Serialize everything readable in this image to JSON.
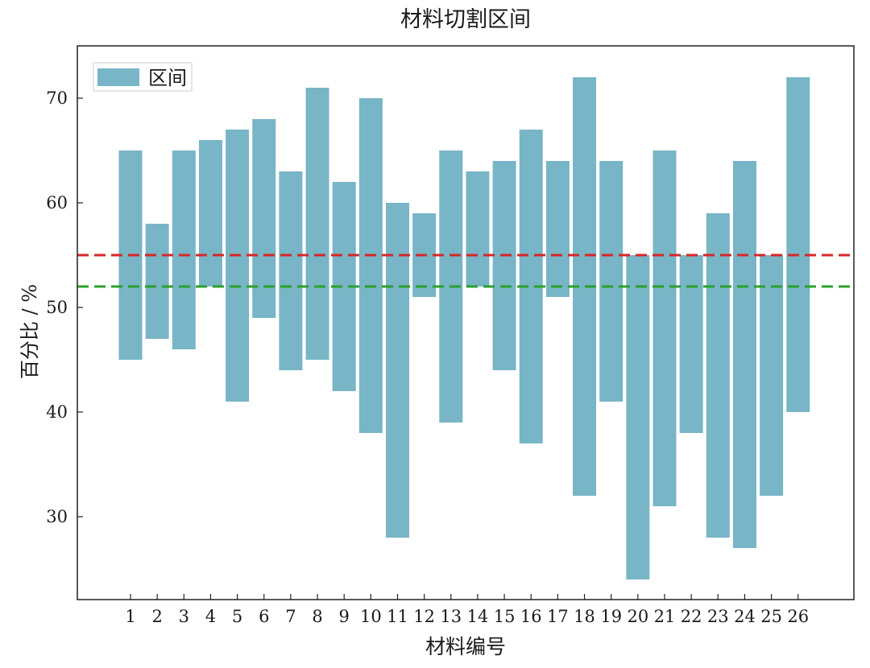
{
  "chart_data": {
    "type": "bar",
    "title": "材料切割区间",
    "xlabel": "材料编号",
    "ylabel": "百分比 / %",
    "categories": [
      "1",
      "2",
      "3",
      "4",
      "5",
      "6",
      "7",
      "8",
      "9",
      "10",
      "11",
      "12",
      "13",
      "14",
      "15",
      "16",
      "17",
      "18",
      "19",
      "20",
      "21",
      "22",
      "23",
      "24",
      "25",
      "26"
    ],
    "series": [
      {
        "name": "区间",
        "color": "#78b5c6",
        "low": [
          45,
          47,
          46,
          52,
          41,
          49,
          44,
          45,
          42,
          38,
          28,
          51,
          39,
          52,
          44,
          37,
          51,
          32,
          41,
          24,
          31,
          38,
          28,
          27,
          32,
          40
        ],
        "high": [
          65,
          58,
          65,
          66,
          67,
          68,
          63,
          71,
          62,
          70,
          60,
          59,
          65,
          63,
          64,
          67,
          64,
          72,
          64,
          55,
          65,
          55,
          59,
          64,
          55,
          72
        ]
      }
    ],
    "reference_lines": [
      {
        "y": 55,
        "color": "#d62728",
        "style": "dashed"
      },
      {
        "y": 52,
        "color": "#2ca02c",
        "style": "dashed"
      }
    ],
    "yticks": [
      30,
      40,
      50,
      60,
      70
    ],
    "ylim": [
      22,
      75
    ],
    "legend_position": "top-left",
    "grid": false
  }
}
